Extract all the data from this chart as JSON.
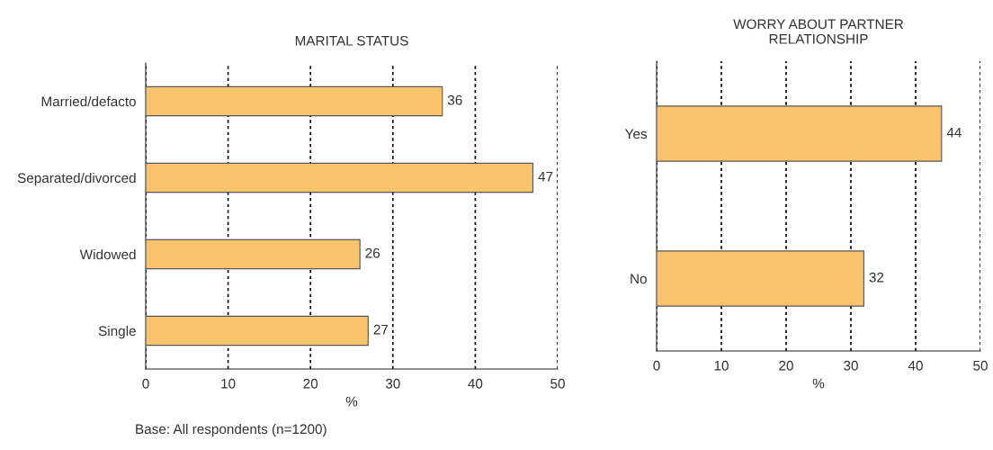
{
  "chart_data": [
    {
      "type": "bar",
      "orientation": "horizontal",
      "title": "MARITAL STATUS",
      "xlabel": "%",
      "categories": [
        "Married/defacto",
        "Separated/divorced",
        "Widowed",
        "Single"
      ],
      "series": [
        {
          "color": "#f9c46b",
          "values": [
            36,
            47,
            26,
            27
          ]
        }
      ],
      "xlim": [
        0,
        50
      ],
      "xticks": [
        0,
        10,
        20,
        30,
        40,
        50
      ],
      "grid": "x",
      "data_labels": true,
      "annotations": [
        "Base: All respondents (n=1200)"
      ]
    },
    {
      "type": "bar",
      "orientation": "horizontal",
      "title": "WORRY ABOUT PARTNER\nRELATIONSHIP",
      "xlabel": "%",
      "categories": [
        "Yes",
        "No"
      ],
      "series": [
        {
          "color": "#f9c46b",
          "values": [
            44,
            32
          ]
        }
      ],
      "xlim": [
        0,
        50
      ],
      "xticks": [
        0,
        10,
        20,
        30,
        40,
        50
      ],
      "grid": "x",
      "data_labels": true
    }
  ]
}
